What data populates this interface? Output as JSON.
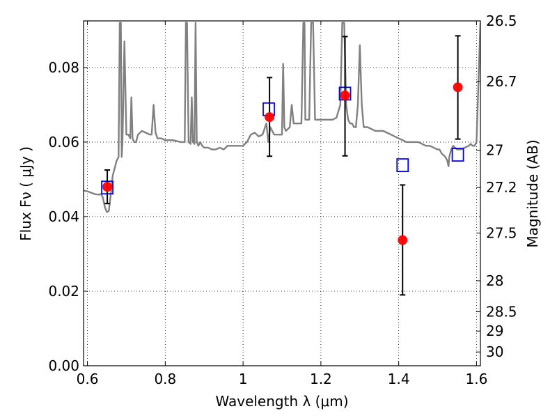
{
  "chart_data": {
    "type": "scatter",
    "title": "",
    "xlabel": "Wavelength  λ (μm)",
    "ylabel": "Flux  Fν ( μJy )",
    "ylabel_right": "Magnitude (AB)",
    "xlim": [
      0.59,
      1.61
    ],
    "ylim": [
      0.0,
      0.0925
    ],
    "x_ticks": [
      0.6,
      0.8,
      1.0,
      1.2,
      1.4,
      1.6
    ],
    "x_tick_labels": [
      "0.6",
      "0.8",
      "1",
      "1.2",
      "1.4",
      "1.6"
    ],
    "y_ticks": [
      0.0,
      0.02,
      0.04,
      0.06,
      0.08
    ],
    "y_tick_labels": [
      "0.00",
      "0.02",
      "0.04",
      "0.06",
      "0.08"
    ],
    "right_ticks": [
      {
        "flux": 0.0925,
        "label": "26.5"
      },
      {
        "flux": 0.0762,
        "label": "26.7"
      },
      {
        "flux": 0.0578,
        "label": "27"
      },
      {
        "flux": 0.0478,
        "label": "27.2"
      },
      {
        "flux": 0.0356,
        "label": "27.5"
      },
      {
        "flux": 0.0228,
        "label": "28"
      },
      {
        "flux": 0.0145,
        "label": "28.5"
      },
      {
        "flux": 0.0093,
        "label": "29"
      },
      {
        "flux": 0.0037,
        "label": "30"
      }
    ],
    "grid": true,
    "series": [
      {
        "kind": "line",
        "color": "#808080",
        "points": [
          [
            0.59,
            0.047
          ],
          [
            0.6,
            0.0468
          ],
          [
            0.61,
            0.0464
          ],
          [
            0.62,
            0.046
          ],
          [
            0.63,
            0.0459
          ],
          [
            0.635,
            0.0461
          ],
          [
            0.64,
            0.045
          ],
          [
            0.645,
            0.0425
          ],
          [
            0.65,
            0.0412
          ],
          [
            0.655,
            0.0415
          ],
          [
            0.66,
            0.046
          ],
          [
            0.665,
            0.051
          ],
          [
            0.67,
            0.053
          ],
          [
            0.675,
            0.055
          ],
          [
            0.68,
            0.056
          ],
          [
            0.683,
            0.092
          ],
          [
            0.686,
            0.092
          ],
          [
            0.688,
            0.056
          ],
          [
            0.69,
            0.06
          ],
          [
            0.695,
            0.087
          ],
          [
            0.7,
            0.062
          ],
          [
            0.705,
            0.062
          ],
          [
            0.71,
            0.061
          ],
          [
            0.713,
            0.072
          ],
          [
            0.716,
            0.061
          ],
          [
            0.72,
            0.06
          ],
          [
            0.725,
            0.06
          ],
          [
            0.73,
            0.062
          ],
          [
            0.74,
            0.063
          ],
          [
            0.75,
            0.0625
          ],
          [
            0.76,
            0.062
          ],
          [
            0.765,
            0.062
          ],
          [
            0.77,
            0.07
          ],
          [
            0.775,
            0.0625
          ],
          [
            0.78,
            0.061
          ],
          [
            0.79,
            0.061
          ],
          [
            0.8,
            0.0605
          ],
          [
            0.82,
            0.0605
          ],
          [
            0.84,
            0.06
          ],
          [
            0.85,
            0.06
          ],
          [
            0.853,
            0.092
          ],
          [
            0.856,
            0.092
          ],
          [
            0.86,
            0.06
          ],
          [
            0.865,
            0.0595
          ],
          [
            0.868,
            0.072
          ],
          [
            0.871,
            0.06
          ],
          [
            0.875,
            0.0595
          ],
          [
            0.878,
            0.092
          ],
          [
            0.881,
            0.06
          ],
          [
            0.885,
            0.059
          ],
          [
            0.89,
            0.06
          ],
          [
            0.895,
            0.059
          ],
          [
            0.9,
            0.0585
          ],
          [
            0.91,
            0.0585
          ],
          [
            0.92,
            0.058
          ],
          [
            0.93,
            0.058
          ],
          [
            0.94,
            0.0585
          ],
          [
            0.95,
            0.058
          ],
          [
            0.96,
            0.059
          ],
          [
            0.98,
            0.059
          ],
          [
            1.0,
            0.059
          ],
          [
            1.01,
            0.06
          ],
          [
            1.02,
            0.062
          ],
          [
            1.03,
            0.0625
          ],
          [
            1.04,
            0.0615
          ],
          [
            1.05,
            0.062
          ],
          [
            1.06,
            0.065
          ],
          [
            1.065,
            0.06
          ],
          [
            1.07,
            0.064
          ],
          [
            1.08,
            0.062
          ],
          [
            1.09,
            0.062
          ],
          [
            1.095,
            0.062
          ],
          [
            1.1,
            0.062
          ],
          [
            1.103,
            0.081
          ],
          [
            1.106,
            0.064
          ],
          [
            1.11,
            0.063
          ],
          [
            1.12,
            0.064
          ],
          [
            1.125,
            0.07
          ],
          [
            1.13,
            0.065
          ],
          [
            1.14,
            0.065
          ],
          [
            1.15,
            0.065
          ],
          [
            1.155,
            0.092
          ],
          [
            1.158,
            0.092
          ],
          [
            1.16,
            0.066
          ],
          [
            1.165,
            0.066
          ],
          [
            1.17,
            0.066
          ],
          [
            1.175,
            0.092
          ],
          [
            1.18,
            0.092
          ],
          [
            1.185,
            0.066
          ],
          [
            1.19,
            0.066
          ],
          [
            1.2,
            0.066
          ],
          [
            1.21,
            0.066
          ],
          [
            1.22,
            0.066
          ],
          [
            1.23,
            0.066
          ],
          [
            1.24,
            0.0665
          ],
          [
            1.25,
            0.07
          ],
          [
            1.255,
            0.092
          ],
          [
            1.26,
            0.092
          ],
          [
            1.265,
            0.07
          ],
          [
            1.27,
            0.066
          ],
          [
            1.275,
            0.065
          ],
          [
            1.28,
            0.065
          ],
          [
            1.285,
            0.064
          ],
          [
            1.29,
            0.064
          ],
          [
            1.295,
            0.07
          ],
          [
            1.3,
            0.086
          ],
          [
            1.305,
            0.07
          ],
          [
            1.31,
            0.064
          ],
          [
            1.32,
            0.064
          ],
          [
            1.33,
            0.0635
          ],
          [
            1.34,
            0.063
          ],
          [
            1.35,
            0.063
          ],
          [
            1.36,
            0.063
          ],
          [
            1.37,
            0.0625
          ],
          [
            1.38,
            0.062
          ],
          [
            1.39,
            0.0615
          ],
          [
            1.4,
            0.061
          ],
          [
            1.41,
            0.0605
          ],
          [
            1.42,
            0.06
          ],
          [
            1.43,
            0.06
          ],
          [
            1.44,
            0.06
          ],
          [
            1.45,
            0.06
          ],
          [
            1.46,
            0.0595
          ],
          [
            1.47,
            0.059
          ],
          [
            1.48,
            0.059
          ],
          [
            1.49,
            0.0585
          ],
          [
            1.5,
            0.058
          ],
          [
            1.505,
            0.058
          ],
          [
            1.51,
            0.057
          ],
          [
            1.52,
            0.056
          ],
          [
            1.525,
            0.055
          ],
          [
            1.528,
            0.0535
          ],
          [
            1.53,
            0.056
          ],
          [
            1.535,
            0.058
          ],
          [
            1.54,
            0.059
          ],
          [
            1.55,
            0.058
          ],
          [
            1.56,
            0.058
          ],
          [
            1.57,
            0.0585
          ],
          [
            1.58,
            0.059
          ],
          [
            1.585,
            0.0595
          ],
          [
            1.59,
            0.059
          ],
          [
            1.595,
            0.059
          ],
          [
            1.6,
            0.06
          ],
          [
            1.61,
            0.092
          ]
        ]
      },
      {
        "kind": "squares",
        "color": "#0000ff",
        "points": [
          [
            0.651,
            0.0478
          ],
          [
            1.066,
            0.0688
          ],
          [
            1.262,
            0.073
          ],
          [
            1.41,
            0.0538
          ],
          [
            1.552,
            0.0566
          ]
        ]
      },
      {
        "kind": "points_errorbars",
        "color": "#ff0000",
        "points": [
          {
            "x": 0.651,
            "y": 0.048,
            "ylo": 0.0435,
            "yhi": 0.0525
          },
          {
            "x": 1.068,
            "y": 0.0667,
            "ylo": 0.0562,
            "yhi": 0.0773
          },
          {
            "x": 1.262,
            "y": 0.0725,
            "ylo": 0.0563,
            "yhi": 0.0883
          },
          {
            "x": 1.41,
            "y": 0.0337,
            "ylo": 0.019,
            "yhi": 0.0485
          },
          {
            "x": 1.552,
            "y": 0.0747,
            "ylo": 0.0608,
            "yhi": 0.0885
          }
        ]
      }
    ]
  }
}
